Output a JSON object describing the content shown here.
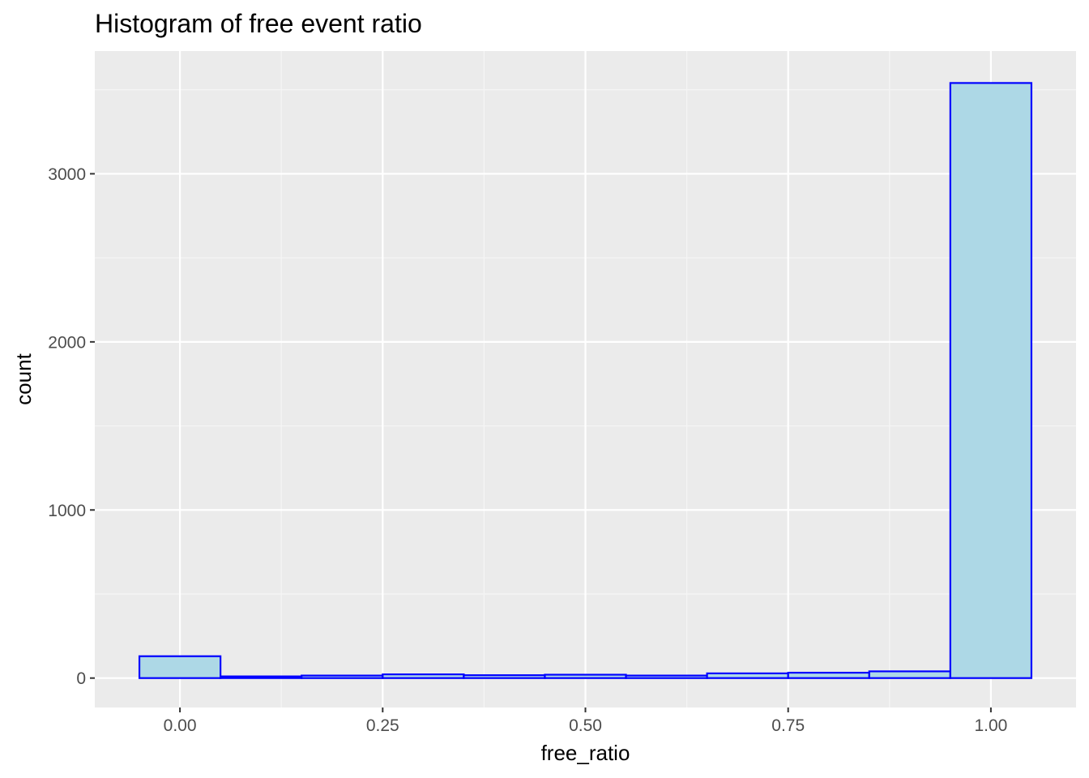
{
  "chart_data": {
    "type": "bar",
    "title": "Histogram of free event ratio",
    "xlabel": "free_ratio",
    "ylabel": "count",
    "xlim": [
      -0.105,
      1.105
    ],
    "ylim": [
      -175,
      3730
    ],
    "x_ticks": [
      0.0,
      0.25,
      0.5,
      0.75,
      1.0
    ],
    "x_tick_labels": [
      "0.00",
      "0.25",
      "0.50",
      "0.75",
      "1.00"
    ],
    "y_ticks": [
      0,
      1000,
      2000,
      3000
    ],
    "y_tick_labels": [
      "0",
      "1000",
      "2000",
      "3000"
    ],
    "grid": true,
    "legend": "none",
    "bin_width": 0.1,
    "bins": [
      {
        "center": 0.0,
        "count": 130
      },
      {
        "center": 0.1,
        "count": 10
      },
      {
        "center": 0.2,
        "count": 15
      },
      {
        "center": 0.3,
        "count": 22
      },
      {
        "center": 0.4,
        "count": 17
      },
      {
        "center": 0.5,
        "count": 20
      },
      {
        "center": 0.6,
        "count": 15
      },
      {
        "center": 0.7,
        "count": 28
      },
      {
        "center": 0.8,
        "count": 32
      },
      {
        "center": 0.9,
        "count": 40
      },
      {
        "center": 1.0,
        "count": 3540
      }
    ],
    "colors": {
      "panel_background": "#EBEBEB",
      "grid_major": "#FFFFFF",
      "grid_minor": "#F5F5F5",
      "bar_fill": "#ADD8E6",
      "bar_outline": "#0000FF",
      "tick_mark": "#333333",
      "tick_label": "#4D4D4D"
    }
  }
}
